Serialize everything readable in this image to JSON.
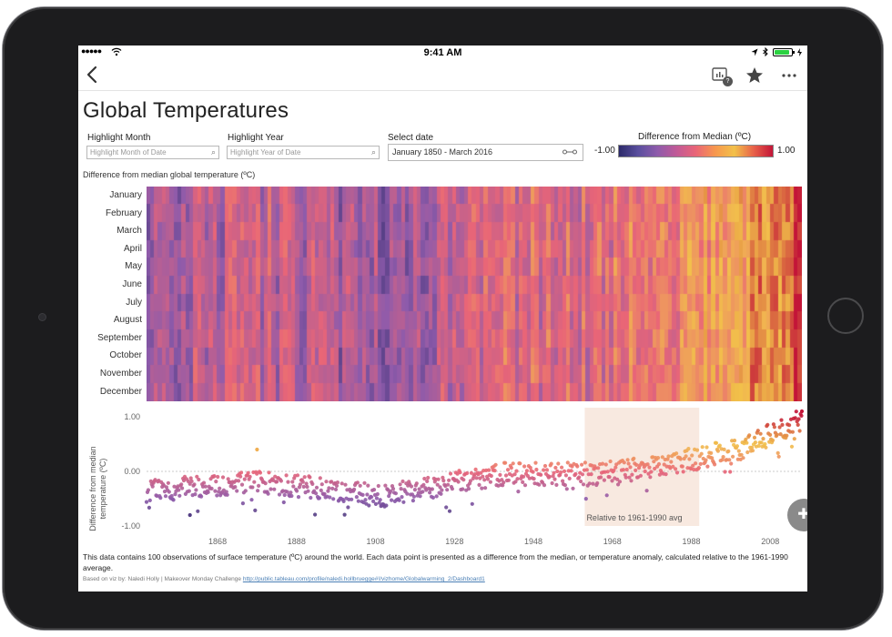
{
  "status_bar": {
    "time": "9:41 AM"
  },
  "dashboard": {
    "title": "Global Temperatures",
    "filters": {
      "highlight_month": {
        "label": "Highlight Month",
        "placeholder": "Highlight Month of Date"
      },
      "highlight_year": {
        "label": "Highlight Year",
        "placeholder": "Highlight Year of Date"
      },
      "select_date": {
        "label": "Select date",
        "value": "January 1850 - March 2016"
      }
    },
    "legend": {
      "title": "Difference from Median (ºC)",
      "min": "-1.00",
      "max": "1.00"
    },
    "heatmap_caption": "Difference from median global temperature (ºC)",
    "months": [
      "January",
      "February",
      "March",
      "April",
      "May",
      "June",
      "July",
      "August",
      "September",
      "October",
      "November",
      "December"
    ],
    "scatter_ylabel": "Difference from median temperature (ºC)",
    "highlight_annotation": "Relative to 1961-1990 avg",
    "footnote": "This data contains 100 observations of surface temperature (ºC) around the world. Each data point is presented as a difference from the median, or temperature anomaly, calculated relative to the 1961-1990 average.",
    "credit_prefix": "Based on viz by: Naledi Holly | Makeover Monday Challenge",
    "credit_link": "http://public.tableau.com/profile/naledi.hollbruegge#!/vizhome/Globalwarming_2/Dashboard1"
  },
  "icons": {
    "back": "chevron-left-icon",
    "comments": "comments-icon",
    "favorite": "star-icon",
    "more": "more-icon",
    "fab": "add-icon"
  },
  "colors": {
    "cold": "#2c2a6a",
    "mid": "#e96577",
    "warm": "#f2c14a",
    "hot": "#c31538",
    "highlight_band": "#f6e3d8"
  },
  "chart_data": [
    {
      "type": "heatmap",
      "title": "Difference from median global temperature (ºC)",
      "x_range": [
        1850,
        2016
      ],
      "y_categories": [
        "January",
        "February",
        "March",
        "April",
        "May",
        "June",
        "July",
        "August",
        "September",
        "October",
        "November",
        "December"
      ],
      "color_scale": {
        "min": -1.0,
        "max": 1.0,
        "palette": [
          "#2c2a6a",
          "#8e5bab",
          "#e96577",
          "#f2c14a",
          "#c31538"
        ]
      },
      "trend_keypoints": [
        {
          "year": 1850,
          "value": -0.35
        },
        {
          "year": 1880,
          "value": -0.2
        },
        {
          "year": 1910,
          "value": -0.45
        },
        {
          "year": 1940,
          "value": -0.05
        },
        {
          "year": 1965,
          "value": -0.05
        },
        {
          "year": 1980,
          "value": 0.1
        },
        {
          "year": 2000,
          "value": 0.4
        },
        {
          "year": 2016,
          "value": 0.95
        }
      ]
    },
    {
      "type": "scatter",
      "x_ticks": [
        1868,
        1888,
        1908,
        1928,
        1948,
        1968,
        1988,
        2008
      ],
      "y_ticks": [
        "1.00",
        "0.00",
        "-1.00"
      ],
      "ylim": [
        -1.0,
        1.0
      ],
      "xlim": [
        1850,
        2016
      ],
      "reference_line": 0.0,
      "highlight_band": {
        "from": 1961,
        "to": 1990,
        "label": "Relative to 1961-1990 avg"
      },
      "trend_keypoints": [
        {
          "year": 1850,
          "value": -0.35
        },
        {
          "year": 1880,
          "value": -0.2
        },
        {
          "year": 1910,
          "value": -0.45
        },
        {
          "year": 1940,
          "value": -0.05
        },
        {
          "year": 1965,
          "value": -0.05
        },
        {
          "year": 1980,
          "value": 0.1
        },
        {
          "year": 2000,
          "value": 0.4
        },
        {
          "year": 2016,
          "value": 0.95
        }
      ],
      "notable_points": [
        {
          "year": 1878,
          "value": 0.4
        },
        {
          "year": 1861,
          "value": -0.8
        },
        {
          "year": 2016,
          "value": 1.1
        }
      ]
    }
  ]
}
